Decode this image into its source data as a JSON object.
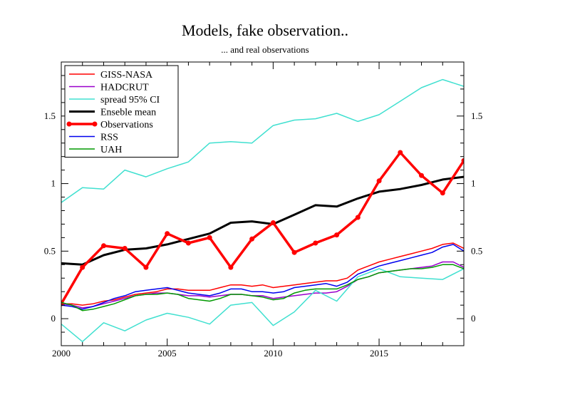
{
  "chart_data": {
    "type": "line",
    "title": "Models, fake observation..",
    "subtitle": "... and real observations",
    "xlabel": "",
    "ylabel": "",
    "xlim": [
      2000,
      2019
    ],
    "ylim": [
      -0.2,
      1.9
    ],
    "x_ticks": [
      {
        "value": 2000,
        "label": "2000"
      },
      {
        "value": 2005,
        "label": "2005"
      },
      {
        "value": 2010,
        "label": "2010"
      },
      {
        "value": 2015,
        "label": "2015"
      }
    ],
    "y_ticks": [
      {
        "value": 0,
        "label": "0"
      },
      {
        "value": 0.5,
        "label": "0.5"
      },
      {
        "value": 1,
        "label": "1"
      },
      {
        "value": 1.5,
        "label": "1.5"
      }
    ],
    "grid": false,
    "legend": "top-left",
    "series": [
      {
        "name": "GISS-NASA",
        "color": "#ff0000",
        "width": 1.5,
        "markers": false,
        "x": [
          2000,
          2000.5,
          2001,
          2001.5,
          2002,
          2002.5,
          2003,
          2003.5,
          2004,
          2004.5,
          2005,
          2005.5,
          2006,
          2006.5,
          2007,
          2007.5,
          2008,
          2008.5,
          2009,
          2009.5,
          2010,
          2010.5,
          2011,
          2011.5,
          2012,
          2012.5,
          2013,
          2013.5,
          2014,
          2014.5,
          2015,
          2015.5,
          2016,
          2016.5,
          2017,
          2017.5,
          2018,
          2018.5,
          2019
        ],
        "y": [
          0.11,
          0.11,
          0.1,
          0.11,
          0.13,
          0.14,
          0.16,
          0.18,
          0.19,
          0.2,
          0.22,
          0.22,
          0.21,
          0.21,
          0.21,
          0.23,
          0.25,
          0.25,
          0.24,
          0.25,
          0.23,
          0.24,
          0.25,
          0.26,
          0.27,
          0.28,
          0.28,
          0.3,
          0.36,
          0.39,
          0.42,
          0.44,
          0.46,
          0.48,
          0.5,
          0.52,
          0.55,
          0.56,
          0.52
        ]
      },
      {
        "name": "HADCRUT",
        "color": "#9900cc",
        "width": 1.5,
        "markers": false,
        "x": [
          2000,
          2000.5,
          2001,
          2001.5,
          2002,
          2002.5,
          2003,
          2003.5,
          2004,
          2004.5,
          2005,
          2005.5,
          2006,
          2006.5,
          2007,
          2007.5,
          2008,
          2008.5,
          2009,
          2009.5,
          2010,
          2010.5,
          2011,
          2011.5,
          2012,
          2012.5,
          2013,
          2013.5,
          2014,
          2014.5,
          2015,
          2015.5,
          2016,
          2016.5,
          2017,
          2017.5,
          2018,
          2018.5,
          2019
        ],
        "y": [
          0.11,
          0.1,
          0.08,
          0.09,
          0.11,
          0.13,
          0.15,
          0.17,
          0.18,
          0.19,
          0.19,
          0.18,
          0.17,
          0.17,
          0.16,
          0.17,
          0.18,
          0.18,
          0.17,
          0.17,
          0.15,
          0.16,
          0.17,
          0.18,
          0.19,
          0.19,
          0.2,
          0.24,
          0.29,
          0.31,
          0.34,
          0.35,
          0.36,
          0.37,
          0.38,
          0.39,
          0.42,
          0.42,
          0.38
        ]
      },
      {
        "name": "spread 95% CI",
        "color": "#40e0d0",
        "width": 1.5,
        "markers": false,
        "x": [
          2000,
          2001,
          2002,
          2003,
          2004,
          2005,
          2006,
          2007,
          2008,
          2009,
          2010,
          2011,
          2012,
          2013,
          2014,
          2015,
          2016,
          2017,
          2018,
          2019
        ],
        "y": [
          0.86,
          0.97,
          0.96,
          1.1,
          1.05,
          1.11,
          1.16,
          1.3,
          1.31,
          1.3,
          1.43,
          1.47,
          1.48,
          1.52,
          1.46,
          1.51,
          1.61,
          1.71,
          1.77,
          1.72
        ]
      },
      {
        "name": "",
        "color": "#40e0d0",
        "width": 1.5,
        "markers": false,
        "x": [
          2000,
          2001,
          2002,
          2003,
          2004,
          2005,
          2006,
          2007,
          2008,
          2009,
          2010,
          2011,
          2012,
          2013,
          2014,
          2015,
          2016,
          2017,
          2018,
          2019
        ],
        "y": [
          -0.04,
          -0.17,
          -0.03,
          -0.09,
          -0.01,
          0.04,
          0.01,
          -0.04,
          0.1,
          0.12,
          -0.05,
          0.05,
          0.21,
          0.13,
          0.31,
          0.37,
          0.31,
          0.3,
          0.29,
          0.37
        ]
      },
      {
        "name": "Enseble mean",
        "color": "#000000",
        "width": 3,
        "markers": false,
        "x": [
          2000,
          2001,
          2002,
          2003,
          2004,
          2005,
          2006,
          2007,
          2008,
          2009,
          2010,
          2011,
          2012,
          2013,
          2014,
          2015,
          2016,
          2017,
          2018,
          2019
        ],
        "y": [
          0.41,
          0.4,
          0.47,
          0.51,
          0.52,
          0.55,
          0.59,
          0.63,
          0.71,
          0.72,
          0.7,
          0.77,
          0.84,
          0.83,
          0.89,
          0.94,
          0.96,
          0.99,
          1.03,
          1.05
        ]
      },
      {
        "name": "Observations",
        "color": "#ff0000",
        "width": 3.5,
        "markers": true,
        "x": [
          2000,
          2001,
          2002,
          2003,
          2004,
          2005,
          2006,
          2007,
          2008,
          2009,
          2010,
          2011,
          2012,
          2013,
          2014,
          2015,
          2016,
          2017,
          2018,
          2019
        ],
        "y": [
          0.11,
          0.38,
          0.54,
          0.52,
          0.38,
          0.63,
          0.56,
          0.6,
          0.38,
          0.59,
          0.71,
          0.49,
          0.56,
          0.62,
          0.75,
          1.02,
          1.23,
          1.06,
          0.93,
          1.17
        ]
      },
      {
        "name": "RSS",
        "color": "#0000ee",
        "width": 1.5,
        "markers": false,
        "x": [
          2000,
          2000.5,
          2001,
          2001.5,
          2002,
          2002.5,
          2003,
          2003.5,
          2004,
          2004.5,
          2005,
          2005.5,
          2006,
          2006.5,
          2007,
          2007.5,
          2008,
          2008.5,
          2009,
          2009.5,
          2010,
          2010.5,
          2011,
          2011.5,
          2012,
          2012.5,
          2013,
          2013.5,
          2014,
          2014.5,
          2015,
          2015.5,
          2016,
          2016.5,
          2017,
          2017.5,
          2018,
          2018.5,
          2019
        ],
        "y": [
          0.1,
          0.09,
          0.07,
          0.09,
          0.12,
          0.15,
          0.17,
          0.2,
          0.21,
          0.22,
          0.23,
          0.21,
          0.19,
          0.18,
          0.17,
          0.19,
          0.22,
          0.22,
          0.2,
          0.2,
          0.19,
          0.2,
          0.23,
          0.24,
          0.25,
          0.26,
          0.24,
          0.27,
          0.33,
          0.36,
          0.39,
          0.41,
          0.43,
          0.45,
          0.47,
          0.49,
          0.53,
          0.55,
          0.5
        ]
      },
      {
        "name": "UAH",
        "color": "#009900",
        "width": 1.5,
        "markers": false,
        "x": [
          2000,
          2000.5,
          2001,
          2001.5,
          2002,
          2002.5,
          2003,
          2003.5,
          2004,
          2004.5,
          2005,
          2005.5,
          2006,
          2006.5,
          2007,
          2007.5,
          2008,
          2008.5,
          2009,
          2009.5,
          2010,
          2010.5,
          2011,
          2011.5,
          2012,
          2012.5,
          2013,
          2013.5,
          2014,
          2014.5,
          2015,
          2015.5,
          2016,
          2016.5,
          2017,
          2017.5,
          2018,
          2018.5,
          2019
        ],
        "y": [
          0.12,
          0.1,
          0.06,
          0.07,
          0.09,
          0.11,
          0.14,
          0.17,
          0.18,
          0.18,
          0.19,
          0.18,
          0.15,
          0.14,
          0.13,
          0.15,
          0.18,
          0.18,
          0.17,
          0.16,
          0.14,
          0.15,
          0.19,
          0.21,
          0.22,
          0.22,
          0.22,
          0.25,
          0.29,
          0.31,
          0.34,
          0.35,
          0.36,
          0.37,
          0.37,
          0.38,
          0.4,
          0.4,
          0.37
        ]
      }
    ]
  }
}
